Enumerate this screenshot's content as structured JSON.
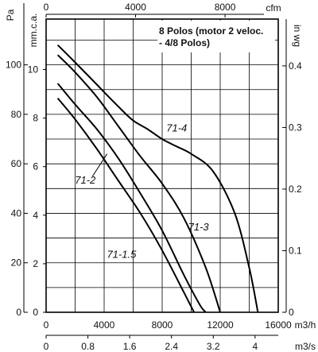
{
  "chart_data": {
    "type": "line",
    "legend_box": {
      "line1": "8 Polos (motor 2 veloc.",
      "line2": "- 4/8 Polos)"
    },
    "grid": true,
    "axes": {
      "left_outer": {
        "label": "Pa",
        "ticks": [
          "0",
          "20",
          "40",
          "60",
          "80",
          "100"
        ],
        "range": [
          0,
          118.5
        ]
      },
      "left_inner": {
        "label": "mm.c.a.",
        "ticks": [
          "0",
          "2",
          "4",
          "6",
          "8",
          "10"
        ],
        "range": [
          0,
          12.08
        ]
      },
      "right": {
        "label": "in wg",
        "ticks": [
          "0",
          "0.1",
          "0.2",
          "0.3",
          "0.4"
        ],
        "range": [
          0,
          0.476
        ]
      },
      "top": {
        "label": "cfm",
        "ticks": [
          "0",
          "4000",
          "8000"
        ],
        "range": [
          0,
          10380
        ]
      },
      "bottom": {
        "label": "m3/h",
        "ticks": [
          "0",
          "4000",
          "8000",
          "12000",
          "16000"
        ],
        "range": [
          0,
          16000
        ]
      },
      "bottom2": {
        "label": "m3/s",
        "ticks": [
          "0",
          "0.8",
          "1.6",
          "2.4",
          "3.2",
          "4"
        ],
        "range": [
          0,
          4.444
        ]
      }
    },
    "series": [
      {
        "name": "71-1.5",
        "x": [
          800,
          2000,
          3500,
          5000,
          6500,
          8000,
          9500,
          10200
        ],
        "y": [
          86.5,
          78,
          66,
          53,
          40,
          25,
          8,
          0
        ]
      },
      {
        "name": "71-2",
        "x": [
          800,
          2000,
          3500,
          5000,
          6500,
          8000,
          9500,
          10600,
          11000
        ],
        "y": [
          92.5,
          84,
          74,
          62,
          48,
          33,
          15,
          3,
          0
        ]
      },
      {
        "name": "71-3",
        "x": [
          800,
          2000,
          3500,
          5000,
          6500,
          8000,
          9500,
          11000,
          12000
        ],
        "y": [
          104,
          97,
          87,
          75,
          63,
          52,
          38,
          18,
          0
        ]
      },
      {
        "name": "71-4",
        "x": [
          800,
          2000,
          3500,
          5000,
          6000,
          7000,
          8000,
          9000,
          10000,
          11500,
          13000,
          14000,
          14600
        ],
        "y": [
          108,
          101,
          92,
          83,
          77.5,
          74,
          70,
          67,
          64,
          57,
          40,
          18,
          0
        ]
      }
    ]
  }
}
